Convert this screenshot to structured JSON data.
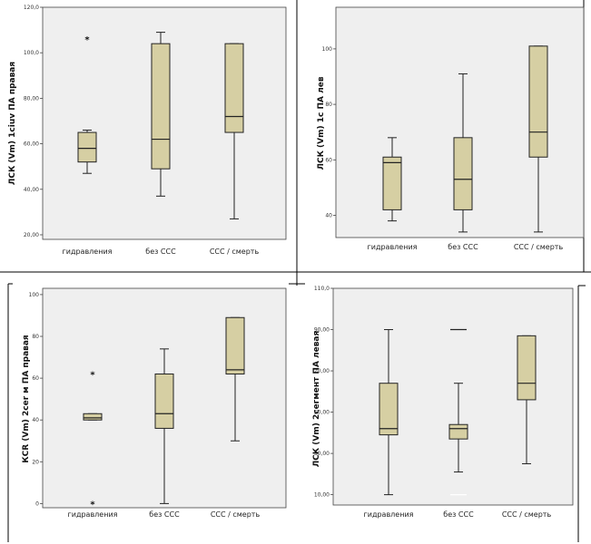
{
  "colors": {
    "plot_bg": "#efefef",
    "box_fill": "#d6cfa3",
    "box_stroke": "#222222",
    "border": "#000000",
    "outlier_white": "#ffffff"
  },
  "chart_data": [
    {
      "type": "boxplot",
      "ylabel": "ЛСК (Vm) 1ciuv ПА правая",
      "categories": [
        "гидравления",
        "без ССС",
        "ССС / смерть"
      ],
      "ylim": [
        18,
        120
      ],
      "ticks": [
        20,
        40,
        60,
        80,
        100,
        120
      ],
      "tick_labels": [
        "20,00",
        "40,00",
        "60,00",
        "80,00",
        "100,0",
        "120,0"
      ],
      "boxes": [
        {
          "whisker_low": 47,
          "q1": 52,
          "median": 58,
          "q3": 65,
          "whisker_high": 66
        },
        {
          "whisker_low": 37,
          "q1": 49,
          "median": 62,
          "q3": 104,
          "whisker_high": 109
        },
        {
          "whisker_low": 27,
          "q1": 65,
          "median": 72,
          "q3": 104,
          "whisker_high": 104
        }
      ],
      "outliers": [
        {
          "category": 0,
          "value": 106,
          "marker": "*"
        }
      ]
    },
    {
      "type": "boxplot",
      "ylabel": "ЛСК (Vm) 1с ПА лев",
      "categories": [
        "гидравления",
        "без ССС",
        "ССС / смерть"
      ],
      "ylim": [
        32,
        115
      ],
      "ticks": [
        40,
        60,
        80,
        100
      ],
      "tick_labels": [
        "40",
        "60",
        "80",
        "100"
      ],
      "boxes": [
        {
          "whisker_low": 38,
          "q1": 42,
          "median": 59,
          "q3": 61,
          "whisker_high": 68
        },
        {
          "whisker_low": 34,
          "q1": 42,
          "median": 53,
          "q3": 68,
          "whisker_high": 91
        },
        {
          "whisker_low": 34,
          "q1": 61,
          "median": 70,
          "q3": 101,
          "whisker_high": 101
        }
      ],
      "outliers": []
    },
    {
      "type": "boxplot",
      "ylabel": "КСR (Vm) 2cer м ПА правая",
      "categories": [
        "гидравления",
        "без ССС",
        "ССС / смерть"
      ],
      "ylim": [
        -2,
        103
      ],
      "ticks": [
        0,
        20,
        40,
        60,
        80,
        100
      ],
      "tick_labels": [
        "0",
        "20",
        "40",
        "60",
        "80",
        "100"
      ],
      "boxes": [
        {
          "whisker_low": 40,
          "q1": 40,
          "median": 41,
          "q3": 43,
          "whisker_high": 43
        },
        {
          "whisker_low": 0,
          "q1": 36,
          "median": 43,
          "q3": 62,
          "whisker_high": 74
        },
        {
          "whisker_low": 30,
          "q1": 62,
          "median": 64,
          "q3": 89,
          "whisker_high": 89
        }
      ],
      "outliers": [
        {
          "category": 0,
          "value": 62,
          "marker": "*"
        },
        {
          "category": 0,
          "value": 0,
          "marker": "*"
        }
      ]
    },
    {
      "type": "boxplot",
      "ylabel": "ЛСК (Vm) 2сегмент ПА левая",
      "categories": [
        "гидравления",
        "без ССС",
        "ССС / смерть"
      ],
      "ylim": [
        5,
        110
      ],
      "ticks": [
        10,
        30,
        50,
        70,
        90,
        110
      ],
      "tick_labels": [
        "10,00",
        "30,00",
        "50,00",
        "70,00",
        "90,00",
        "110,0"
      ],
      "boxes": [
        {
          "whisker_low": 10,
          "q1": 39,
          "median": 42,
          "q3": 64,
          "whisker_high": 90
        },
        {
          "whisker_low": 21,
          "q1": 37,
          "median": 42,
          "q3": 44,
          "whisker_high": 64
        },
        {
          "whisker_low": 25,
          "q1": 56,
          "median": 64,
          "q3": 87,
          "whisker_high": 87
        }
      ],
      "outliers": [
        {
          "category": 1,
          "value": 90,
          "marker": "line"
        },
        {
          "category": 1,
          "value": 10,
          "marker": "line-white"
        }
      ]
    }
  ]
}
